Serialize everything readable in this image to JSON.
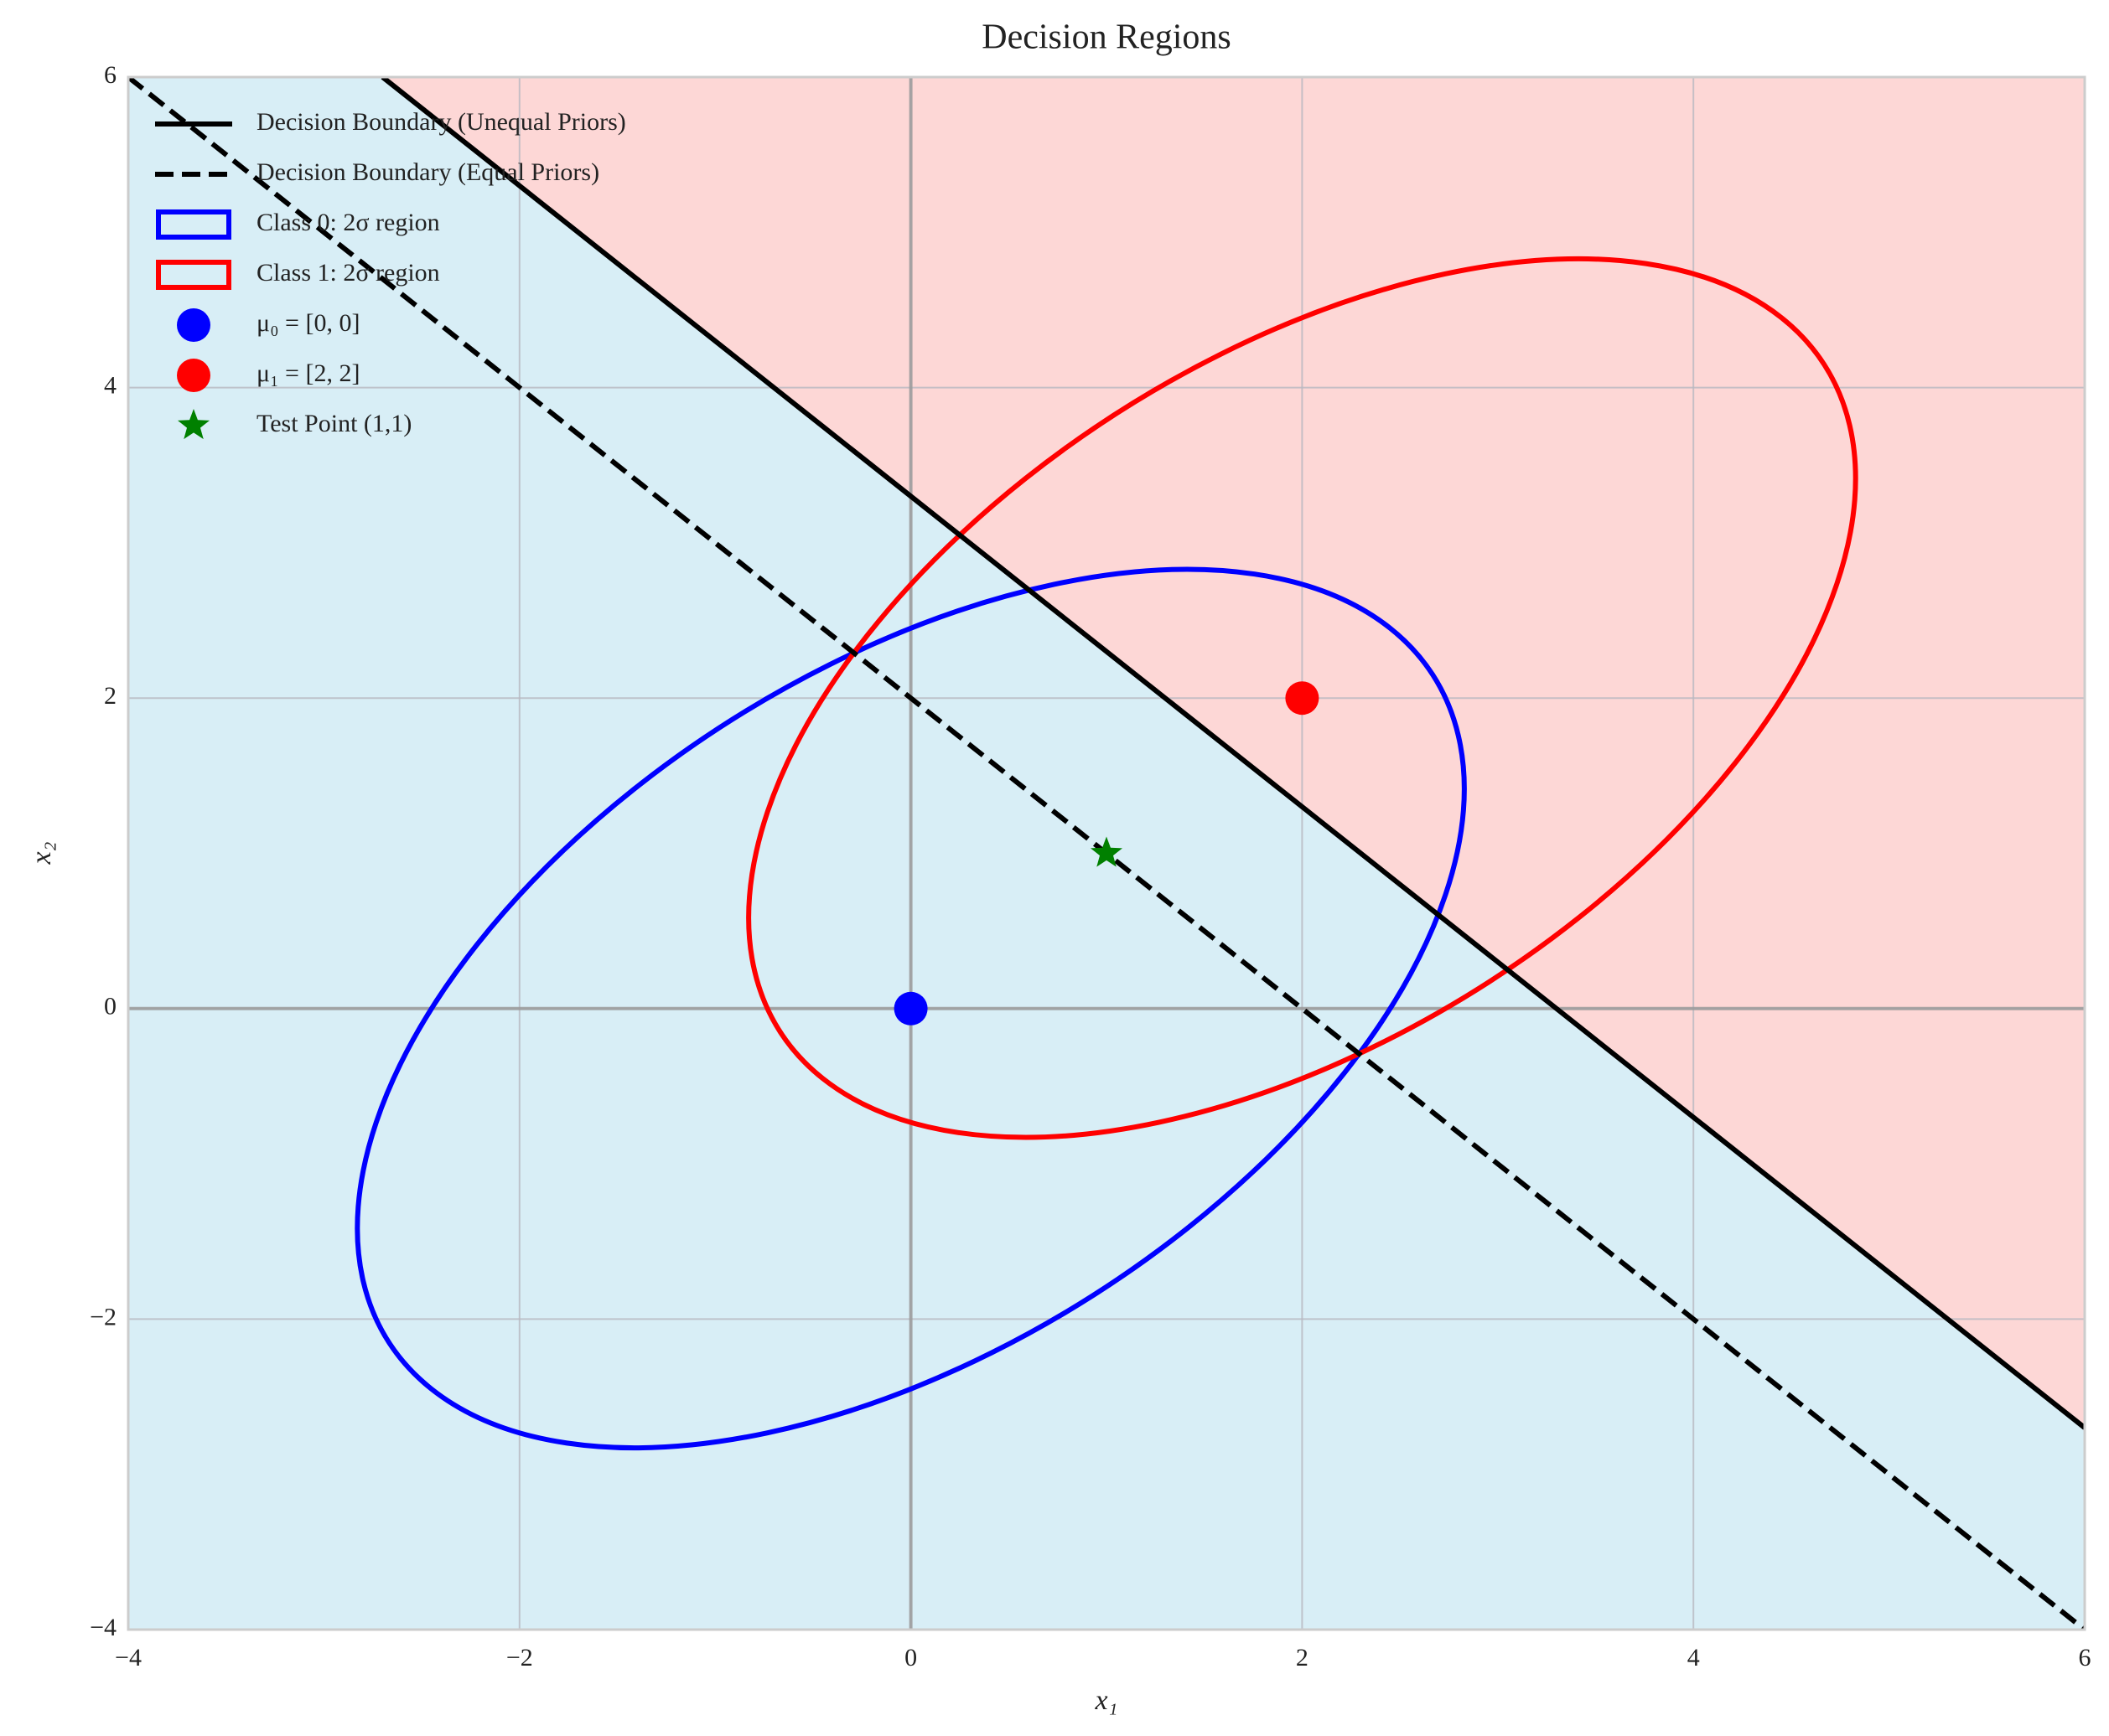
{
  "chart_data": {
    "type": "decision-regions",
    "title": "Decision Regions",
    "xlabel": "x₁",
    "ylabel": "x₂",
    "xlim": [
      -4,
      6
    ],
    "ylim": [
      -4,
      6
    ],
    "xticks": [
      {
        "value": -4,
        "label": "−4"
      },
      {
        "value": -2,
        "label": "−2"
      },
      0,
      2,
      4,
      6
    ],
    "yticks": [
      {
        "value": -4,
        "label": "−4"
      },
      {
        "value": -2,
        "label": "−2"
      },
      0,
      2,
      4,
      6
    ],
    "grid": true,
    "zero_lines": true,
    "legend": "upper left",
    "region_colors": {
      "class_0": "#d8eef6",
      "class_1": "#fdd7d6"
    },
    "series": [
      {
        "name": "Decision Boundary (Unequal Priors)",
        "color": "#000000",
        "dash": false,
        "x": [
          -2.7,
          6
        ],
        "y": [
          6,
          -2.7
        ]
      },
      {
        "name": "Decision Boundary (Equal Priors)",
        "color": "#000000",
        "dash": true,
        "x": [
          -4,
          6
        ],
        "y": [
          6,
          -4
        ]
      }
    ],
    "ellipses": [
      {
        "name": "Class 0: 2σ region",
        "color": "#0000ff",
        "center": [
          0,
          0
        ],
        "width": 6.93,
        "height": 4,
        "angle": 45
      },
      {
        "name": "Class 1: 2σ region",
        "color": "#ff0000",
        "center": [
          2,
          2
        ],
        "width": 6.93,
        "height": 4,
        "angle": 45
      }
    ],
    "points": [
      {
        "name": "μ₀ = [0, 0]",
        "color": "#0000ff",
        "marker": "circle",
        "x": 0,
        "y": 0
      },
      {
        "name": "μ₁ = [2, 2]",
        "color": "#ff0000",
        "marker": "circle",
        "x": 2,
        "y": 2
      },
      {
        "name": "Test Point (1,1)",
        "color": "#008000",
        "marker": "star",
        "x": 1,
        "y": 1
      }
    ]
  }
}
